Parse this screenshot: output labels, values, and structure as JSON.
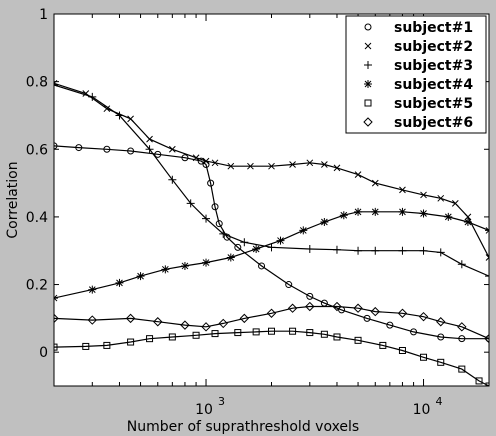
{
  "chart_data": {
    "type": "line",
    "title": "",
    "xlabel": "Number of suprathreshold voxels",
    "ylabel": "Correlation",
    "xscale": "log",
    "xlim": [
      200,
      20000
    ],
    "ylim": [
      -0.1,
      1.0
    ],
    "yticks": [
      0,
      0.2,
      0.4,
      0.6,
      0.8,
      1
    ],
    "ytick_labels": [
      "0",
      "0.2",
      "0.4",
      "0.6",
      "0.8",
      "1"
    ],
    "xticks": [
      {
        "value": 1000,
        "base": "10",
        "exp": "3"
      },
      {
        "value": 10000,
        "base": "10",
        "exp": "4"
      }
    ],
    "grid": false,
    "legend_position": "top-right",
    "colors": {
      "background": "#c0c0c0",
      "plot_area": "#ffffff",
      "ink": "#000000"
    },
    "series": [
      {
        "name": "subject#1",
        "marker": "circle",
        "x": [
          200,
          260,
          350,
          450,
          600,
          800,
          950,
          1000,
          1050,
          1100,
          1150,
          1250,
          1400,
          1800,
          2400,
          3000,
          3500,
          4200,
          5500,
          7000,
          9000,
          12000,
          15000,
          20000
        ],
        "y": [
          0.61,
          0.605,
          0.6,
          0.595,
          0.585,
          0.575,
          0.565,
          0.555,
          0.5,
          0.43,
          0.38,
          0.34,
          0.31,
          0.255,
          0.2,
          0.165,
          0.145,
          0.125,
          0.1,
          0.08,
          0.06,
          0.045,
          0.04,
          0.04
        ]
      },
      {
        "name": "subject#2",
        "marker": "x",
        "x": [
          200,
          280,
          350,
          450,
          550,
          700,
          900,
          1000,
          1100,
          1300,
          1600,
          2000,
          2500,
          3000,
          3500,
          4000,
          5000,
          6000,
          8000,
          10000,
          12000,
          14000,
          16000,
          20000
        ],
        "y": [
          0.795,
          0.765,
          0.72,
          0.69,
          0.63,
          0.6,
          0.575,
          0.565,
          0.56,
          0.55,
          0.55,
          0.55,
          0.555,
          0.56,
          0.555,
          0.545,
          0.525,
          0.5,
          0.48,
          0.465,
          0.455,
          0.44,
          0.4,
          0.28
        ]
      },
      {
        "name": "subject#3",
        "marker": "plus",
        "x": [
          200,
          300,
          400,
          550,
          700,
          850,
          1000,
          1200,
          1500,
          2000,
          3000,
          4000,
          5000,
          6000,
          8000,
          10000,
          12000,
          15000,
          20000
        ],
        "y": [
          0.79,
          0.755,
          0.7,
          0.6,
          0.51,
          0.44,
          0.395,
          0.35,
          0.325,
          0.31,
          0.305,
          0.303,
          0.3,
          0.3,
          0.3,
          0.3,
          0.295,
          0.26,
          0.225
        ]
      },
      {
        "name": "subject#4",
        "marker": "star",
        "x": [
          200,
          300,
          400,
          500,
          650,
          800,
          1000,
          1300,
          1700,
          2200,
          2800,
          3500,
          4300,
          5000,
          6000,
          8000,
          10000,
          13000,
          16000,
          20000
        ],
        "y": [
          0.16,
          0.185,
          0.205,
          0.225,
          0.245,
          0.255,
          0.265,
          0.28,
          0.305,
          0.33,
          0.36,
          0.385,
          0.405,
          0.415,
          0.415,
          0.415,
          0.41,
          0.4,
          0.385,
          0.36
        ]
      },
      {
        "name": "subject#5",
        "marker": "square",
        "x": [
          200,
          280,
          350,
          450,
          550,
          700,
          900,
          1100,
          1400,
          1700,
          2000,
          2500,
          3000,
          3500,
          4000,
          5000,
          6500,
          8000,
          10000,
          12000,
          15000,
          18000,
          20000
        ],
        "y": [
          0.015,
          0.017,
          0.02,
          0.03,
          0.04,
          0.045,
          0.05,
          0.055,
          0.058,
          0.06,
          0.062,
          0.062,
          0.058,
          0.053,
          0.045,
          0.035,
          0.02,
          0.005,
          -0.015,
          -0.03,
          -0.05,
          -0.085,
          -0.1
        ]
      },
      {
        "name": "subject#6",
        "marker": "diamond",
        "x": [
          200,
          300,
          450,
          600,
          800,
          1000,
          1200,
          1500,
          2000,
          2500,
          3000,
          4000,
          5000,
          6000,
          8000,
          10000,
          12000,
          15000,
          20000
        ],
        "y": [
          0.1,
          0.095,
          0.1,
          0.09,
          0.08,
          0.075,
          0.085,
          0.1,
          0.115,
          0.13,
          0.135,
          0.135,
          0.13,
          0.12,
          0.115,
          0.105,
          0.09,
          0.075,
          0.04
        ]
      }
    ]
  }
}
